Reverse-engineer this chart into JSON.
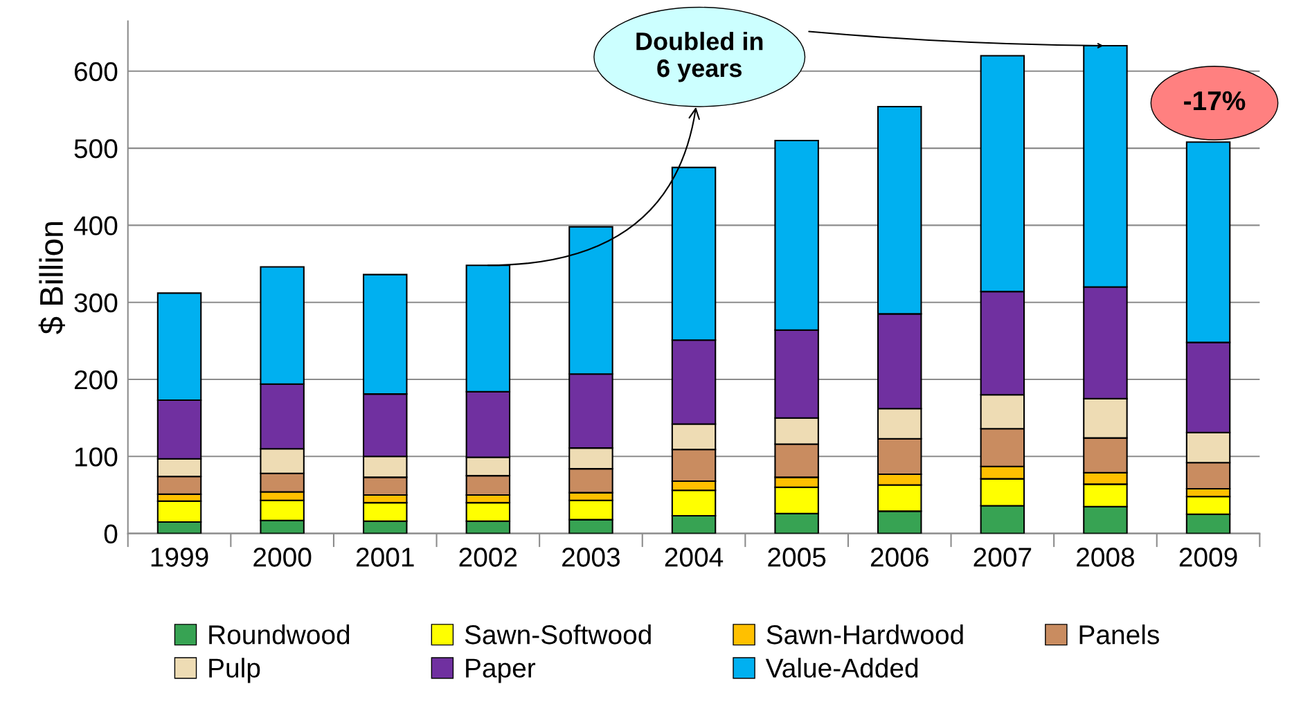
{
  "chart_data": {
    "type": "bar",
    "stacked": true,
    "ylabel": "$ Billion",
    "categories": [
      "1999",
      "2000",
      "2001",
      "2002",
      "2003",
      "2004",
      "2005",
      "2006",
      "2007",
      "2008",
      "2009"
    ],
    "series": [
      {
        "name": "Roundwood",
        "color": "#37a353",
        "values": [
          15,
          17,
          16,
          16,
          18,
          23,
          26,
          29,
          36,
          35,
          25
        ]
      },
      {
        "name": "Sawn-Softwood",
        "color": "#ffff00",
        "values": [
          27,
          26,
          24,
          24,
          25,
          33,
          34,
          34,
          35,
          29,
          23
        ]
      },
      {
        "name": "Sawn-Hardwood",
        "color": "#ffc000",
        "values": [
          9,
          11,
          10,
          10,
          10,
          12,
          13,
          14,
          16,
          15,
          10
        ]
      },
      {
        "name": "Panels",
        "color": "#c98c60",
        "values": [
          23,
          24,
          23,
          25,
          31,
          41,
          43,
          46,
          49,
          45,
          34
        ]
      },
      {
        "name": "Pulp",
        "color": "#eedcb4",
        "values": [
          23,
          32,
          27,
          24,
          27,
          33,
          34,
          39,
          44,
          51,
          39
        ]
      },
      {
        "name": "Paper",
        "color": "#7030a0",
        "values": [
          76,
          84,
          81,
          85,
          96,
          109,
          114,
          123,
          134,
          145,
          117
        ]
      },
      {
        "name": "Value-Added",
        "color": "#00b0f0",
        "values": [
          139,
          152,
          155,
          164,
          191,
          224,
          246,
          269,
          306,
          313,
          260
        ]
      }
    ],
    "ylim": [
      0,
      665
    ],
    "yticks": [
      0,
      100,
      200,
      300,
      400,
      500,
      600
    ],
    "grid": "y",
    "legend": "bottom",
    "annotations": [
      {
        "text": "Doubled in\n6 years",
        "x": "2002",
        "y": 348
      },
      "-17%"
    ]
  }
}
